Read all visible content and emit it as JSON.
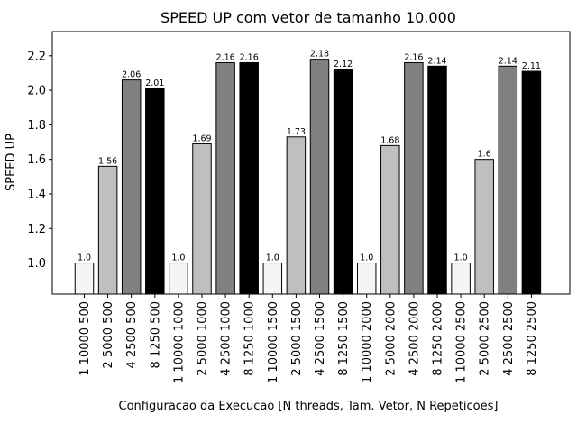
{
  "chart_data": {
    "type": "bar",
    "title": "SPEED UP com vetor de tamanho 10.000",
    "xlabel": "Configuracao da Execucao [N threads, Tam. Vetor, N Repeticoes]",
    "ylabel": "SPEED UP",
    "ylim": [
      0.82,
      2.34
    ],
    "yticks": [
      1.0,
      1.2,
      1.4,
      1.6,
      1.8,
      2.0,
      2.2
    ],
    "ytick_labels": [
      "1.0",
      "1.2",
      "1.4",
      "1.6",
      "1.8",
      "2.0",
      "2.2"
    ],
    "grid": false,
    "categories": [
      "1 10000 500",
      "2 5000 500",
      "4 2500 500",
      "8 1250 500",
      "1 10000 1000",
      "2 5000 1000",
      "4 2500 1000",
      "8 1250 1000",
      "1 10000 1500",
      "2 5000 1500",
      "4 2500 1500",
      "8 1250 1500",
      "1 10000 2000",
      "2 5000 2000",
      "4 2500 2000",
      "8 1250 2000",
      "1 10000 2500",
      "2 5000 2500",
      "4 2500 2500",
      "8 1250 2500"
    ],
    "values": [
      1.0,
      1.56,
      2.06,
      2.01,
      1.0,
      1.69,
      2.16,
      2.16,
      1.0,
      1.73,
      2.18,
      2.12,
      1.0,
      1.68,
      2.16,
      2.14,
      1.0,
      1.6,
      2.14,
      2.11
    ],
    "value_labels": [
      "1.0",
      "1.56",
      "2.06",
      "2.01",
      "1.0",
      "1.69",
      "2.16",
      "2.16",
      "1.0",
      "1.73",
      "2.18",
      "2.12",
      "1.0",
      "1.68",
      "2.16",
      "2.14",
      "1.0",
      "1.6",
      "2.14",
      "2.11"
    ],
    "bar_colors": [
      "#f5f5f5",
      "#bfbfbf",
      "#808080",
      "#000000",
      "#f5f5f5",
      "#bfbfbf",
      "#808080",
      "#000000",
      "#f5f5f5",
      "#bfbfbf",
      "#808080",
      "#000000",
      "#f5f5f5",
      "#bfbfbf",
      "#808080",
      "#000000",
      "#f5f5f5",
      "#bfbfbf",
      "#808080",
      "#000000"
    ],
    "edge_color": "#000000"
  }
}
